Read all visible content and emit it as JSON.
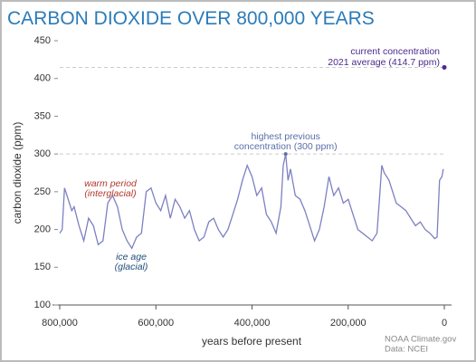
{
  "chart_data": {
    "type": "line",
    "title": "CARBON DIOXIDE OVER 800,000 YEARS",
    "x_label": "years before present",
    "y_label": "carbon dioxide (ppm)",
    "xlim": [
      800000,
      0
    ],
    "ylim": [
      100,
      450
    ],
    "xticks": [
      {
        "value": 800000,
        "label": "800,000"
      },
      {
        "value": 600000,
        "label": "600,000"
      },
      {
        "value": 400000,
        "label": "400,000"
      },
      {
        "value": 200000,
        "label": "200,000"
      },
      0
    ],
    "yticks": [
      100,
      150,
      200,
      250,
      300,
      350,
      400,
      450
    ],
    "x": [
      800000,
      795000,
      790000,
      785000,
      775000,
      770000,
      760000,
      750000,
      740000,
      730000,
      720000,
      710000,
      700000,
      690000,
      680000,
      670000,
      660000,
      650000,
      640000,
      630000,
      620000,
      610000,
      600000,
      590000,
      580000,
      570000,
      560000,
      550000,
      540000,
      530000,
      520000,
      510000,
      500000,
      490000,
      480000,
      470000,
      460000,
      450000,
      440000,
      430000,
      420000,
      410000,
      400000,
      390000,
      380000,
      370000,
      360000,
      350000,
      340000,
      335000,
      330000,
      325000,
      320000,
      310000,
      300000,
      290000,
      280000,
      270000,
      260000,
      250000,
      240000,
      230000,
      220000,
      210000,
      200000,
      190000,
      180000,
      170000,
      160000,
      150000,
      140000,
      135000,
      130000,
      125000,
      115000,
      105000,
      100000,
      90000,
      80000,
      70000,
      60000,
      50000,
      40000,
      30000,
      20000,
      15000,
      10000,
      5000,
      2000
    ],
    "series": [
      {
        "color": "#7d80c2",
        "values": [
          195,
          200,
          255,
          245,
          225,
          230,
          205,
          185,
          215,
          205,
          180,
          185,
          235,
          245,
          230,
          200,
          185,
          175,
          190,
          195,
          250,
          255,
          235,
          225,
          245,
          215,
          240,
          230,
          215,
          225,
          200,
          185,
          190,
          210,
          215,
          200,
          190,
          200,
          220,
          240,
          265,
          285,
          270,
          245,
          255,
          220,
          210,
          195,
          230,
          285,
          300,
          265,
          280,
          245,
          240,
          225,
          205,
          185,
          200,
          230,
          270,
          245,
          255,
          235,
          240,
          220,
          200,
          195,
          190,
          185,
          195,
          240,
          285,
          275,
          265,
          245,
          235,
          230,
          225,
          215,
          205,
          210,
          200,
          195,
          188,
          190,
          265,
          270,
          280
        ]
      }
    ],
    "current": {
      "x": 0,
      "value": 414.7,
      "color": "#4b2a8c",
      "lines": [
        "current concentration",
        "2021 average (414.7 ppm)"
      ]
    },
    "highest": {
      "x": 330000,
      "value": 300,
      "color": "#5a6fa8",
      "lines": [
        "highest previous",
        "concentration (300 ppm)"
      ]
    },
    "annotations": [
      {
        "color": "#b23a2e",
        "lines": [
          "warm period",
          "(interglacial)"
        ]
      },
      {
        "color": "#1f4e79",
        "lines": [
          "ice age",
          "(glacial)"
        ]
      }
    ],
    "source": [
      "NOAA Climate.gov",
      "Data: NCEI"
    ]
  }
}
